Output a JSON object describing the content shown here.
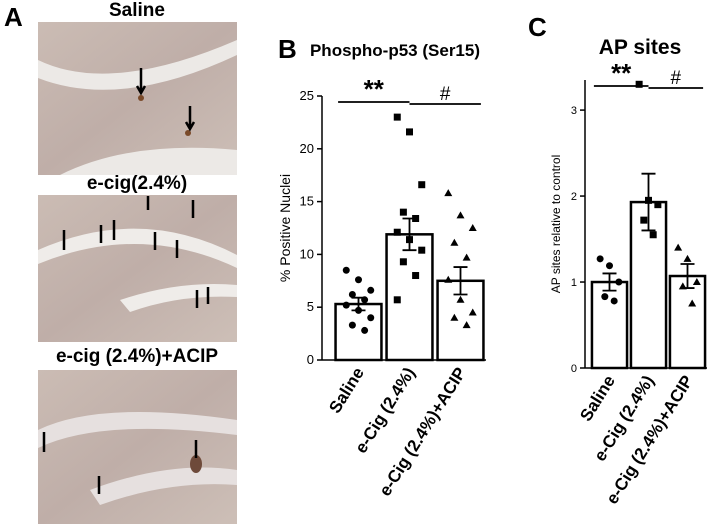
{
  "figure": {
    "panel_a": {
      "label": "A",
      "images": [
        "Saline",
        "e-cig(2.4%)",
        "e-cig (2.4%)+ACIP"
      ]
    }
  },
  "chart_data": [
    {
      "type": "bar",
      "panel": "B",
      "title": "Phospho-p53 (Ser15)",
      "ylabel": "% Positive Nuclei",
      "categories": [
        "Saline",
        "e-Cig (2.4%)",
        "e-Cig (2.4%)+ACIP"
      ],
      "values": [
        5.3,
        11.9,
        7.5
      ],
      "errors": [
        0.6,
        1.5,
        1.3
      ],
      "points": [
        [
          8.5,
          7.6,
          6.6,
          6.2,
          5.7,
          5.2,
          4.7,
          4.0,
          3.3,
          2.8
        ],
        [
          23.0,
          21.6,
          16.6,
          14.0,
          13.4,
          12.1,
          11.4,
          10.4,
          9.3,
          8.0,
          5.7
        ],
        [
          15.8,
          13.7,
          12.5,
          11.1,
          9.7,
          7.6,
          5.7,
          4.5,
          4.0,
          3.3
        ]
      ],
      "markers": [
        "circle",
        "square",
        "triangle"
      ],
      "color": "#ffffff",
      "edge_color": "#000000",
      "annotations": [
        "**",
        "#"
      ],
      "ylim": [
        0,
        25
      ],
      "yticks": [
        0,
        5,
        10,
        15,
        20,
        25
      ]
    },
    {
      "type": "bar",
      "panel": "C",
      "title": "AP sites",
      "ylabel": "AP sites relative to control",
      "categories": [
        "Saline",
        "e-Cig (2.4%)",
        "e-Cig (2.4%)+ACIP"
      ],
      "values": [
        1.0,
        1.93,
        1.07
      ],
      "errors": [
        0.1,
        0.33,
        0.14
      ],
      "points": [
        [
          1.27,
          1.19,
          1.0,
          0.83,
          0.78
        ],
        [
          3.3,
          1.95,
          1.9,
          1.72,
          1.55
        ],
        [
          1.4,
          1.27,
          1.0,
          0.95,
          0.75
        ]
      ],
      "markers": [
        "circle",
        "square",
        "triangle"
      ],
      "color": "#ffffff",
      "edge_color": "#000000",
      "annotations": [
        "**",
        "#"
      ],
      "ylim": [
        0,
        3.35
      ],
      "yticks": [
        0,
        1,
        2,
        3
      ]
    }
  ]
}
